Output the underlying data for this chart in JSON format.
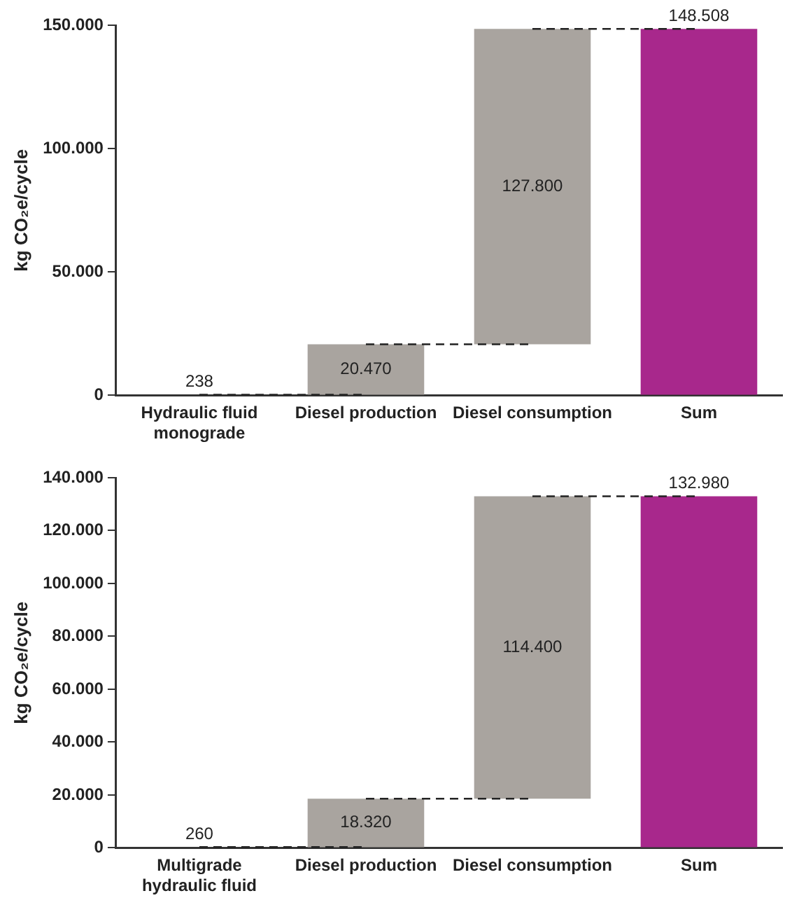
{
  "chart_data": [
    {
      "type": "bar",
      "ylabel": "kg CO₂e/cycle",
      "categories": [
        "Hydraulic fluid monograde",
        "Diesel production",
        "Diesel consumption",
        "Sum"
      ],
      "series": [
        {
          "base": [
            0,
            238,
            20708,
            0
          ],
          "values": [
            238,
            20470,
            127800,
            148508
          ],
          "colors": [
            "#a9a49f",
            "#a9a49f",
            "#a9a49f",
            "#a8288c"
          ],
          "value_labels": [
            "238",
            "20.470",
            "127.800",
            "148.508"
          ]
        },
        {
          "type": "line",
          "color": "#222222",
          "line_style": "dashed",
          "marker": "none",
          "values": [
            238,
            238,
            null,
            null
          ]
        },
        {
          "type": "line",
          "color": "#222222",
          "line_style": "dashed",
          "marker": "none",
          "values": [
            null,
            20708,
            20708,
            null
          ]
        },
        {
          "type": "line",
          "color": "#222222",
          "line_style": "dashed",
          "marker": "none",
          "values": [
            null,
            null,
            148508,
            148508
          ]
        }
      ],
      "ylim": [
        0,
        150000
      ],
      "yticks": [
        0,
        {
          "value": 50000,
          "label": "50.000"
        },
        {
          "value": 100000,
          "label": "100.000"
        },
        {
          "value": 150000,
          "label": "150.000"
        }
      ],
      "grid": false,
      "legend": false
    },
    {
      "type": "bar",
      "ylabel": "kg CO₂e/cycle",
      "categories": [
        "Multigrade hydraulic fluid",
        "Diesel production",
        "Diesel consumption",
        "Sum"
      ],
      "series": [
        {
          "base": [
            0,
            260,
            18580,
            0
          ],
          "values": [
            260,
            18320,
            114400,
            132980
          ],
          "colors": [
            "#a9a49f",
            "#a9a49f",
            "#a9a49f",
            "#a8288c"
          ],
          "value_labels": [
            "260",
            "18.320",
            "114.400",
            "132.980"
          ]
        },
        {
          "type": "line",
          "color": "#222222",
          "line_style": "dashed",
          "marker": "none",
          "values": [
            260,
            260,
            null,
            null
          ]
        },
        {
          "type": "line",
          "color": "#222222",
          "line_style": "dashed",
          "marker": "none",
          "values": [
            null,
            18580,
            18580,
            null
          ]
        },
        {
          "type": "line",
          "color": "#222222",
          "line_style": "dashed",
          "marker": "none",
          "values": [
            null,
            null,
            132980,
            132980
          ]
        }
      ],
      "ylim": [
        0,
        140000
      ],
      "yticks": [
        0,
        {
          "value": 20000,
          "label": "20.000"
        },
        {
          "value": 40000,
          "label": "40.000"
        },
        {
          "value": 60000,
          "label": "60.000"
        },
        {
          "value": 80000,
          "label": "80.000"
        },
        {
          "value": 100000,
          "label": "100.000"
        },
        {
          "value": 120000,
          "label": "120.000"
        },
        {
          "value": 140000,
          "label": "140.000"
        }
      ],
      "grid": false,
      "legend": false
    }
  ]
}
